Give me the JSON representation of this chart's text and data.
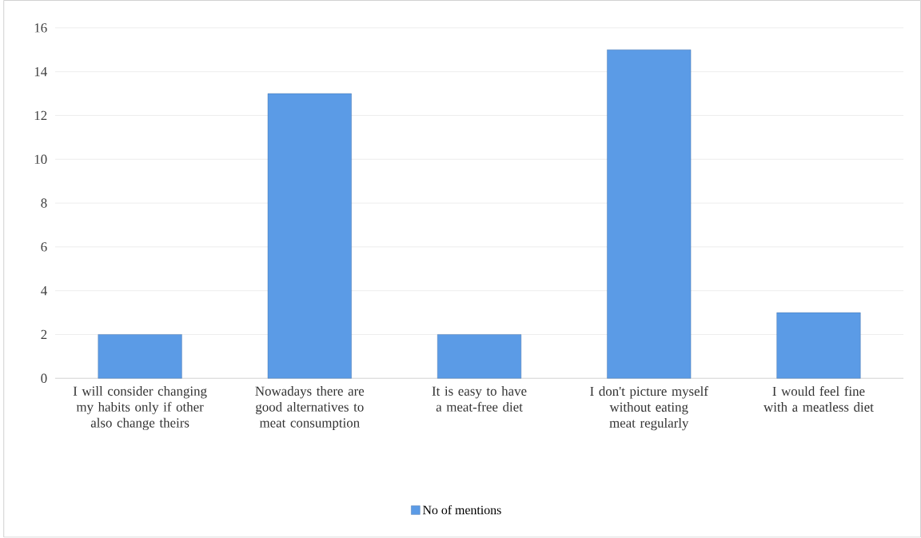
{
  "chart_data": {
    "type": "bar",
    "categories": [
      "I will consider changing my habits only if other also change theirs",
      "Nowadays there are good alternatives to meat consumption",
      "It is easy to have a meat-free diet",
      "I don't picture myself without eating meat regularly",
      "I would feel fine with a meatless diet"
    ],
    "series": [
      {
        "name": "No of mentions",
        "color": "#5b9be6",
        "values": [
          2,
          13,
          2,
          15,
          3
        ]
      }
    ],
    "ylim": [
      0,
      16
    ],
    "yticks": [
      0,
      2,
      4,
      6,
      8,
      10,
      12,
      14,
      16
    ],
    "grid": "y",
    "legend": "bottom"
  }
}
